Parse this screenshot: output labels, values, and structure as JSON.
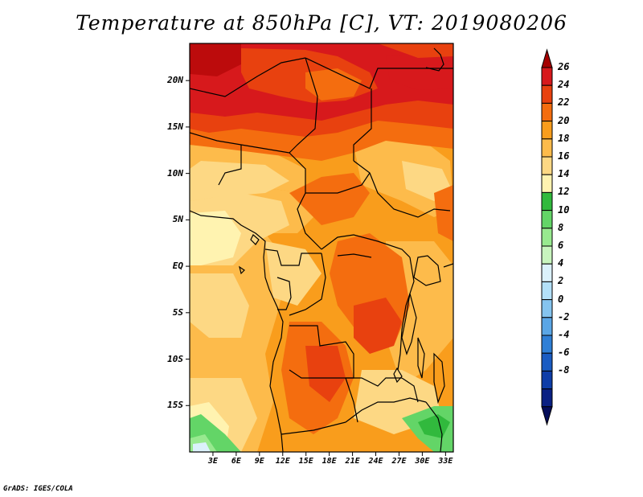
{
  "title": "Temperature at 850hPa [C], VT: 2019080206",
  "credit": "GrADS: IGES/COLA",
  "map": {
    "lat_labels": [
      "20N",
      "15N",
      "10N",
      "5N",
      "EQ",
      "5S",
      "10S",
      "15S"
    ],
    "lon_labels": [
      "3E",
      "6E",
      "9E",
      "12E",
      "15E",
      "18E",
      "21E",
      "24E",
      "27E",
      "30E",
      "33E"
    ],
    "lon_range": [
      0,
      34
    ],
    "lat_range": [
      -20,
      24
    ]
  },
  "colorbar": {
    "labels": [
      "26",
      "24",
      "22",
      "20",
      "18",
      "16",
      "14",
      "12",
      "10",
      "8",
      "6",
      "4",
      "2",
      "0",
      "-2",
      "-4",
      "-6",
      "-8"
    ],
    "colors": [
      "#a50000",
      "#d7191c",
      "#e8410f",
      "#f46d0f",
      "#f99d1c",
      "#fdbb4b",
      "#fdd884",
      "#fff3b0",
      "#31b93d",
      "#63d567",
      "#98e98f",
      "#c8f4be",
      "#dbf1fb",
      "#b3e0f8",
      "#85c4ef",
      "#5aa6e6",
      "#2f7fd6",
      "#1a5cc2",
      "#0e3da8",
      "#0a2083",
      "#050d5a"
    ]
  }
}
